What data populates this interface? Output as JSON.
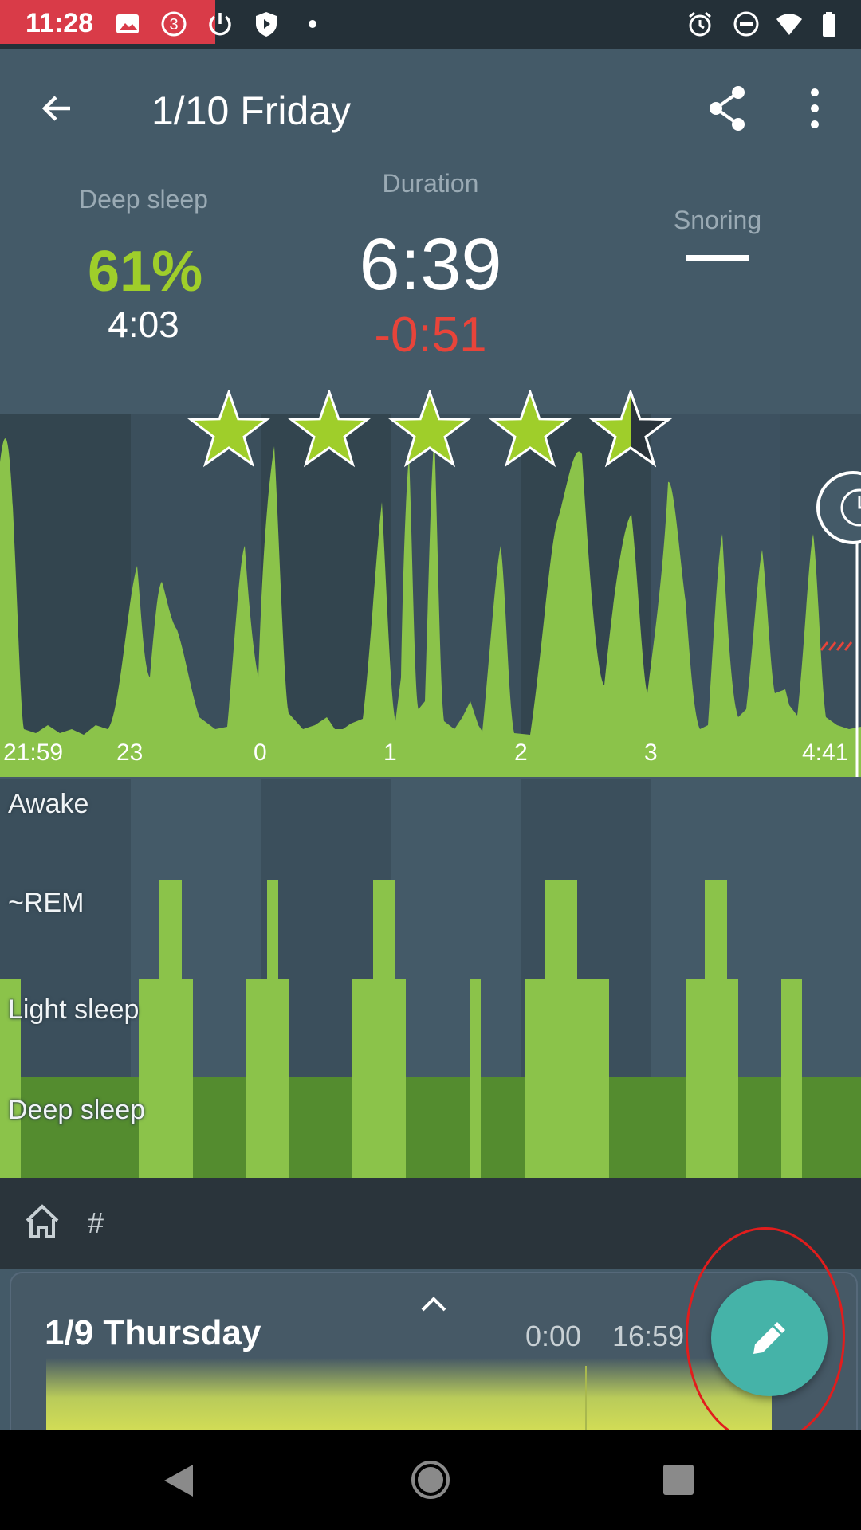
{
  "status_bar": {
    "time": "11:28",
    "notification_count": "3"
  },
  "app_bar": {
    "title": "1/10 Friday"
  },
  "stats": {
    "deep_sleep": {
      "label": "Deep sleep",
      "percent": "61%",
      "time": "4:03"
    },
    "duration": {
      "label": "Duration",
      "value": "6:39",
      "diff": "-0:51"
    },
    "snoring": {
      "label": "Snoring",
      "value": "–"
    }
  },
  "rating": {
    "stars": 4.5,
    "max": 5
  },
  "chart_data": {
    "type": "area",
    "x_tick_labels": [
      "21:59",
      "23",
      "0",
      "1",
      "2",
      "3",
      "4:41"
    ],
    "stage_labels": [
      "Awake",
      "~REM",
      "Light sleep",
      "Deep sleep"
    ]
  },
  "tags": {
    "hash_label": "#"
  },
  "card": {
    "title": "1/9 Thursday",
    "start": "0:00",
    "end": "16:59"
  },
  "colors": {
    "background": "#445a68",
    "accent_green": "#9fce2a",
    "deficit_red": "#e8443a",
    "fab": "#45b3a8"
  }
}
